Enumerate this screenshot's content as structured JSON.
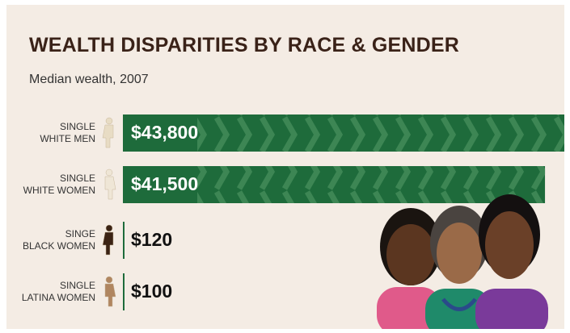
{
  "chart_data": {
    "type": "hbar",
    "title": "WEALTH DISPARITIES BY RACE & GENDER",
    "subtitle": "Median wealth, 2007",
    "categories": [
      "SINGLE\nWHITE MEN",
      "SINGLE\nWHITE WOMEN",
      "SINGE\nBLACK WOMEN",
      "SINGLE\nLATINA WOMEN"
    ],
    "values": [
      43800,
      41500,
      120,
      100
    ],
    "value_labels": [
      "$43,800",
      "$41,500",
      "$120",
      "$100"
    ],
    "color": "#1e6b3b",
    "icon_colors": [
      "#e8dcc4",
      "#efe6d6",
      "#3b2314",
      "#b08660"
    ]
  }
}
